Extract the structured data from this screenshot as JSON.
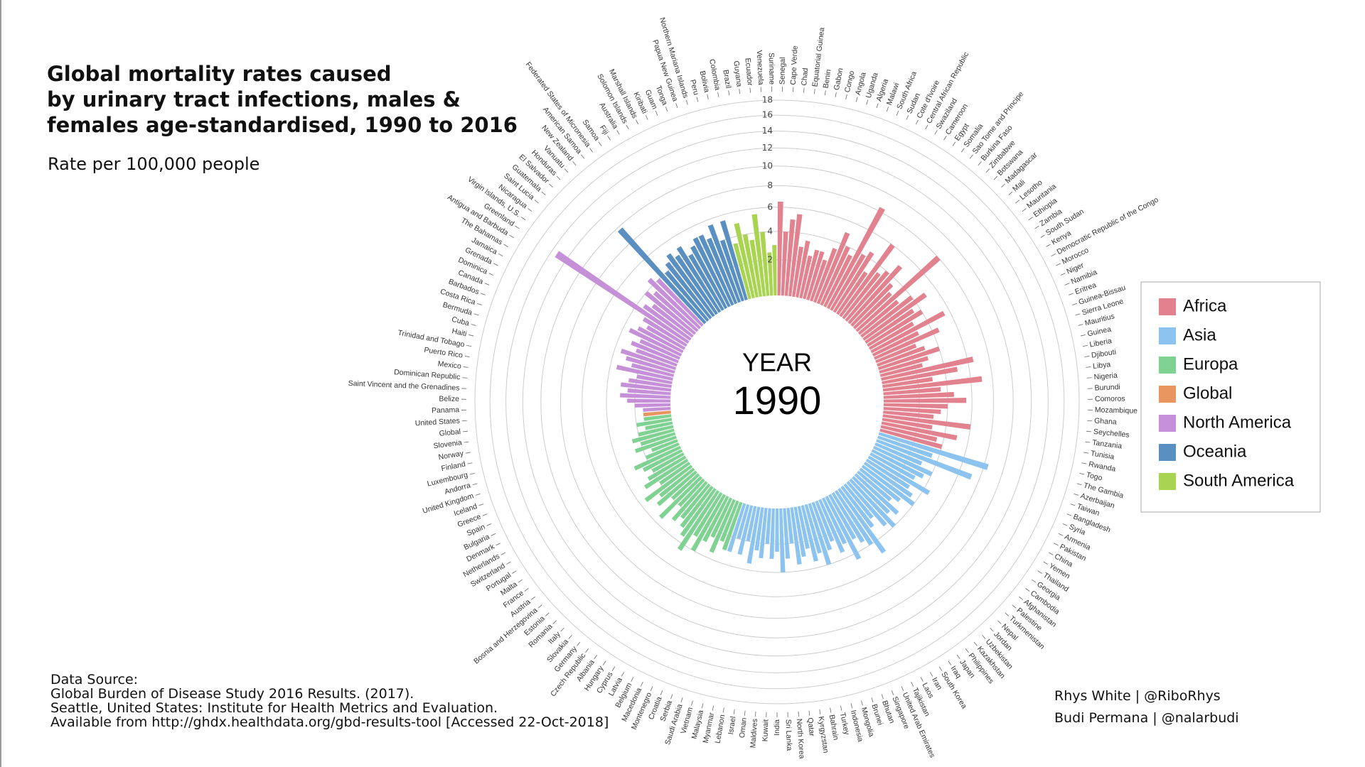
{
  "chart_data": {
    "type": "radial_bar",
    "title": [
      "Global mortality rates caused",
      "by urinary tract infections, males &",
      "females age-standardised, 1990 to 2016"
    ],
    "subtitle": "Rate per 100,000 people",
    "center_label": "YEAR",
    "year": "1990",
    "ylim": [
      0,
      18
    ],
    "yticks": [
      2,
      4,
      6,
      8,
      10,
      12,
      14,
      16,
      18
    ],
    "scale": "sqrt-area",
    "grid": true,
    "legend": "right",
    "source": [
      "Data Source:",
      "Global Burden of Disease Study 2016 Results. (2017).",
      "Seattle, United States: Institute for Health Metrics and Evaluation.",
      "Available from http://ghdx.healthdata.org/gbd-results-tool [Accessed 22-Oct-2018]"
    ],
    "credits": [
      "Rhys White | @RiboRhys",
      "Budi Permana | @nalarbudi"
    ],
    "series": [
      {
        "name": "Africa",
        "color": "#e2828f",
        "categories": [
          "Senegal",
          "Cape Verde",
          "Chad",
          "Equatorial Guinea",
          "Benin",
          "Gabon",
          "Congo",
          "Angola",
          "Uganda",
          "Algeria",
          "Malawi",
          "South Africa",
          "Sudan",
          "Cote d'Ivoire",
          "Central African Republic",
          "Swaziland",
          "Cameroon",
          "Egypt",
          "Somalia",
          "Sao Tome and Principe",
          "Burkina Faso",
          "Zimbabwe",
          "Botswana",
          "Madagascar",
          "Mali",
          "Lesotho",
          "Mauritania",
          "Ethiopia",
          "Zambia",
          "South Sudan",
          "Kenya",
          "Democratic Republic of the Congo",
          "Morocco",
          "Niger",
          "Namibia",
          "Eritrea",
          "Guinea-Bissau",
          "Sierra Leone",
          "Mauritius",
          "Guinea",
          "Liberia",
          "Djibouti",
          "Libya",
          "Nigeria",
          "Burundi",
          "Comoros",
          "Mozambique",
          "Ghana",
          "Seychelles",
          "Tanzania",
          "Tunisia",
          "Rwanda",
          "Togo",
          "The Gambia"
        ],
        "values": [
          6.5,
          4,
          5,
          5.5,
          3,
          3.5,
          2.5,
          3,
          3,
          2.5,
          3.5,
          5,
          4,
          3.5,
          8.4,
          4,
          4.5,
          3,
          6,
          3.5,
          4,
          5,
          3.5,
          3,
          8,
          3,
          4,
          5,
          3.5,
          4,
          3,
          5.5,
          3,
          4.5,
          2.5,
          3,
          4,
          3,
          2.5,
          6.5,
          5,
          3,
          7,
          3.5,
          4.5,
          5.5,
          4,
          3.5,
          3,
          6,
          3,
          5,
          3.5,
          4
        ]
      },
      {
        "name": "Asia",
        "color": "#8cc4ef",
        "categories": [
          "Azerbaijan",
          "Taiwan",
          "Bangladesh",
          "Syria",
          "Armenia",
          "Pakistan",
          "China",
          "Yemen",
          "Thailand",
          "Georgia",
          "Cambodia",
          "Afghanistan",
          "Palestine",
          "Turkmenistan",
          "Nepal",
          "Jordan",
          "Uzbekistan",
          "Kazakhstan",
          "Philippines",
          "Japan",
          "Iraq",
          "South Korea",
          "Iran",
          "Laos",
          "Tajikistan",
          "United Arab Emirates",
          "Singapore",
          "Bhutan",
          "Brunei",
          "Mongolia",
          "Indonesia",
          "Turkey",
          "Bahrain",
          "Kyrgyzstan",
          "Qatar",
          "North Korea",
          "Sri Lanka",
          "India",
          "Kuwait",
          "Maldives",
          "Oman",
          "Israel",
          "Lebanon",
          "Myanmar",
          "Malaysia",
          "Vietnam",
          "Saudi Arabia"
        ],
        "values": [
          8.4,
          3.5,
          7.2,
          3,
          4,
          3.5,
          3,
          4.5,
          3,
          3.5,
          4,
          3,
          2.5,
          3.5,
          3,
          4,
          3.5,
          2.5,
          3,
          5.1,
          4,
          3.5,
          3,
          4.5,
          3,
          3.5,
          2.5,
          3,
          4,
          3,
          3.5,
          2.5,
          3,
          3.5,
          2,
          3,
          4,
          2.5,
          3,
          2,
          3,
          2.5,
          3.5,
          2,
          3,
          2,
          3
        ]
      },
      {
        "name": "Europa",
        "color": "#80d292",
        "categories": [
          "Serbia",
          "Croatia",
          "Montenegro",
          "Macedonia",
          "Belgium",
          "Latvia",
          "Cyprus",
          "Hungary",
          "Albania",
          "Czech Republic",
          "Germany",
          "Slovakia",
          "Italy",
          "Romania",
          "Estonia",
          "Bosnia and Herzegovina",
          "Austria",
          "France",
          "Malta",
          "Portugal",
          "Switzerland",
          "Netherlands",
          "Denmark",
          "Bulgaria",
          "Spain",
          "Greece",
          "Iceland",
          "United Kingdom",
          "Andorra",
          "Luxembourg",
          "Finland",
          "Norway",
          "Slovenia"
        ],
        "values": [
          3,
          2.5,
          3.5,
          2.5,
          3,
          4,
          3,
          4.5,
          3.5,
          3,
          2.5,
          3,
          2,
          3.5,
          2,
          3,
          2.5,
          3.5,
          2,
          3,
          2.5,
          2,
          2.5,
          3,
          2,
          1.5,
          2.5,
          2,
          2.5,
          2,
          1.5,
          2,
          1.5
        ]
      },
      {
        "name": "Global",
        "color": "#e8955f",
        "categories": [
          "Global"
        ],
        "values": [
          1.5
        ]
      },
      {
        "name": "North America",
        "color": "#c690d8",
        "categories": [
          "United States",
          "Panama",
          "Belize",
          "Saint Vincent and the Grenadines",
          "Dominican Republic",
          "Mexico",
          "Puerto Rico",
          "Trinidad and Tobago",
          "Haiti",
          "Cuba",
          "Bermuda",
          "Costa Rica",
          "Barbados",
          "Canada",
          "Dominica",
          "Grenada",
          "Jamaica",
          "The Bahamas",
          "Antigua and Barbuda",
          "Greenland",
          "Virgin Islands, U.S.",
          "Nicaragua",
          "Saint Lucia",
          "Guatemala",
          "El Salvador",
          "Honduras"
        ],
        "values": [
          1.5,
          2,
          2.5,
          3,
          2.5,
          3,
          2.5,
          2,
          3.5,
          2.5,
          3,
          3.5,
          2.5,
          3,
          2.5,
          3.5,
          3,
          2.5,
          3,
          13.3,
          3.5,
          3,
          4,
          3.5,
          4.5,
          4
        ]
      },
      {
        "name": "Oceania",
        "color": "#5a8fc2",
        "categories": [
          "Vanuatu",
          "New Zealand",
          "American Samoa",
          "Federated States of Micronesia",
          "Samoa",
          "Fiji",
          "Australia",
          "Solomon Islands",
          "Marshall Islands",
          "Kiribati",
          "Guam",
          "Tonga",
          "Papua New Guinea",
          "Northern Mariana Islands"
        ],
        "values": [
          9.7,
          4,
          4.5,
          5,
          4.5,
          5,
          4,
          4.5,
          5,
          5,
          4.5,
          5.5,
          4,
          5.5
        ]
      },
      {
        "name": "South America",
        "color": "#a9d451",
        "categories": [
          "Peru",
          "Bolivia",
          "Colombia",
          "Brazil",
          "Guyana",
          "Ecuador",
          "Venezuela",
          "Suriname"
        ],
        "values": [
          3.5,
          5,
          4,
          3.5,
          5.5,
          4,
          2.5,
          3
        ]
      }
    ]
  }
}
